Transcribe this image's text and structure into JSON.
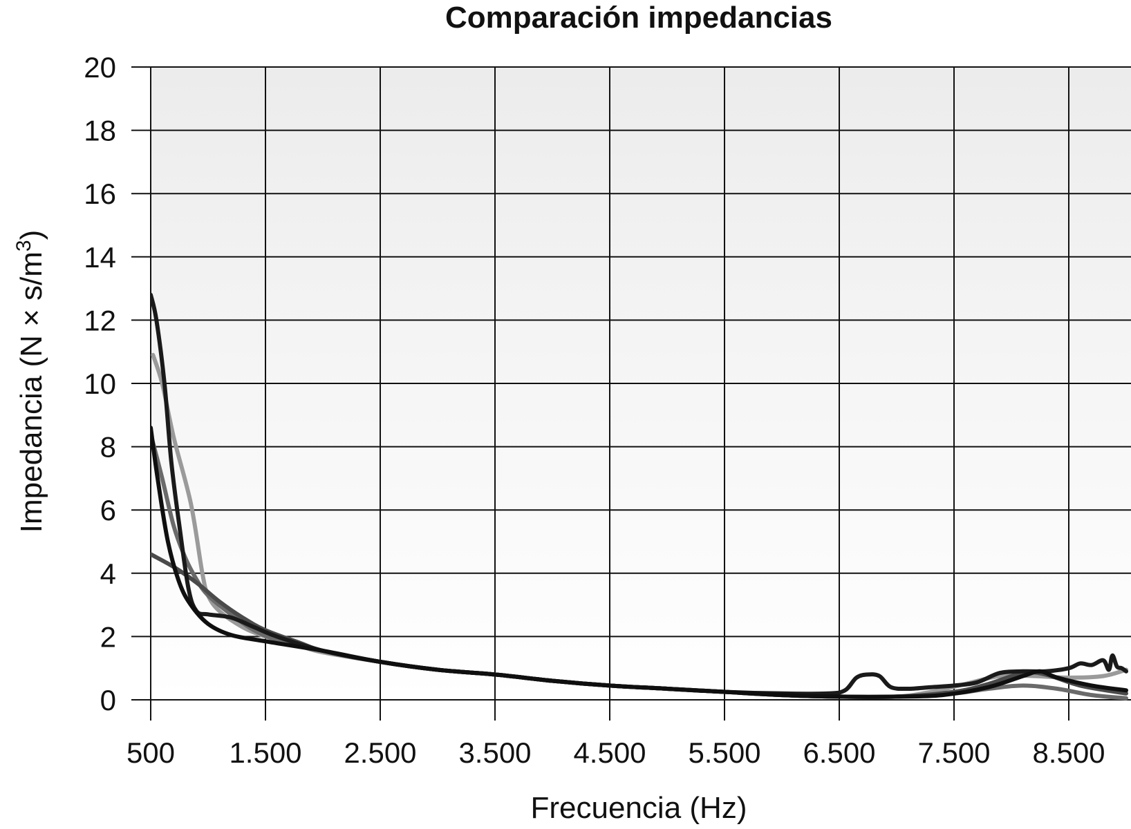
{
  "chart_data": {
    "type": "line",
    "title": "Comparación impedancias",
    "xlabel": "Frecuencia (Hz)",
    "ylabel_main": "Impedancia (N × s/m",
    "ylabel_sup": "3",
    "ylabel_close": ")",
    "xlim": [
      500,
      9000
    ],
    "ylim": [
      0,
      20
    ],
    "x_ticks": [
      {
        "value": 500,
        "label": "500"
      },
      {
        "value": 1500,
        "label": "1.500"
      },
      {
        "value": 2500,
        "label": "2.500"
      },
      {
        "value": 3500,
        "label": "3.500"
      },
      {
        "value": 4500,
        "label": "4.500"
      },
      {
        "value": 5500,
        "label": "5.500"
      },
      {
        "value": 6500,
        "label": "6.500"
      },
      {
        "value": 7500,
        "label": "7.500"
      },
      {
        "value": 8500,
        "label": "8.500"
      }
    ],
    "y_ticks": [
      {
        "value": 0,
        "label": "0"
      },
      {
        "value": 2,
        "label": "2"
      },
      {
        "value": 4,
        "label": "4"
      },
      {
        "value": 6,
        "label": "6"
      },
      {
        "value": 8,
        "label": "8"
      },
      {
        "value": 10,
        "label": "10"
      },
      {
        "value": 12,
        "label": "12"
      },
      {
        "value": 14,
        "label": "14"
      },
      {
        "value": 16,
        "label": "16"
      },
      {
        "value": 18,
        "label": "18"
      },
      {
        "value": 20,
        "label": "20"
      }
    ],
    "grid": true,
    "background_gradient": [
      "#ececec",
      "#ffffff"
    ],
    "series": [
      {
        "color": "#9a9a9a",
        "width": 6,
        "points": [
          [
            520,
            10.9
          ],
          [
            600,
            10
          ],
          [
            700,
            8.3
          ],
          [
            850,
            6.2
          ],
          [
            950,
            4
          ],
          [
            1000,
            3.3
          ],
          [
            1100,
            2.8
          ],
          [
            1300,
            2.3
          ],
          [
            1500,
            2
          ],
          [
            1800,
            1.7
          ],
          [
            2000,
            1.5
          ],
          [
            2500,
            1.2
          ],
          [
            3000,
            0.95
          ],
          [
            3500,
            0.8
          ],
          [
            4000,
            0.6
          ],
          [
            4500,
            0.45
          ],
          [
            5000,
            0.35
          ],
          [
            5500,
            0.25
          ],
          [
            6000,
            0.15
          ],
          [
            6500,
            0.1
          ],
          [
            7000,
            0.1
          ],
          [
            7300,
            0.25
          ],
          [
            7600,
            0.5
          ],
          [
            7900,
            0.75
          ],
          [
            8200,
            0.75
          ],
          [
            8500,
            0.7
          ],
          [
            8800,
            0.75
          ],
          [
            9000,
            0.95
          ]
        ]
      },
      {
        "color": "#6a6a6a",
        "width": 6,
        "points": [
          [
            500,
            8.4
          ],
          [
            600,
            7
          ],
          [
            700,
            5.5
          ],
          [
            800,
            4.5
          ],
          [
            900,
            3.8
          ],
          [
            1000,
            3.3
          ],
          [
            1200,
            2.7
          ],
          [
            1400,
            2.2
          ],
          [
            1600,
            1.9
          ],
          [
            2000,
            1.55
          ],
          [
            2500,
            1.2
          ],
          [
            3000,
            0.95
          ],
          [
            3500,
            0.8
          ],
          [
            4000,
            0.6
          ],
          [
            4500,
            0.45
          ],
          [
            5000,
            0.35
          ],
          [
            5500,
            0.25
          ],
          [
            6000,
            0.15
          ],
          [
            6500,
            0.1
          ],
          [
            7000,
            0.1
          ],
          [
            7500,
            0.2
          ],
          [
            7800,
            0.35
          ],
          [
            8100,
            0.45
          ],
          [
            8400,
            0.35
          ],
          [
            8700,
            0.15
          ],
          [
            9000,
            0.05
          ]
        ]
      },
      {
        "color": "#4a4a4a",
        "width": 6,
        "points": [
          [
            500,
            4.6
          ],
          [
            700,
            4.2
          ],
          [
            900,
            3.7
          ],
          [
            1100,
            3.1
          ],
          [
            1300,
            2.6
          ],
          [
            1500,
            2.2
          ],
          [
            1800,
            1.8
          ],
          [
            2000,
            1.55
          ],
          [
            2500,
            1.2
          ],
          [
            3000,
            0.95
          ],
          [
            3500,
            0.8
          ],
          [
            4000,
            0.6
          ],
          [
            4500,
            0.45
          ],
          [
            5000,
            0.35
          ],
          [
            5500,
            0.25
          ],
          [
            6000,
            0.15
          ],
          [
            6500,
            0.1
          ],
          [
            7000,
            0.1
          ],
          [
            7500,
            0.25
          ],
          [
            7800,
            0.5
          ],
          [
            8100,
            0.85
          ],
          [
            8300,
            0.8
          ],
          [
            8600,
            0.45
          ],
          [
            9000,
            0.2
          ]
        ]
      },
      {
        "color": "#1a1a1a",
        "width": 6,
        "points": [
          [
            500,
            12.8
          ],
          [
            550,
            12
          ],
          [
            620,
            10
          ],
          [
            680,
            7.5
          ],
          [
            750,
            5.5
          ],
          [
            830,
            3.5
          ],
          [
            900,
            2.8
          ],
          [
            1000,
            2.7
          ],
          [
            1200,
            2.6
          ],
          [
            1400,
            2.3
          ],
          [
            1600,
            2
          ],
          [
            2000,
            1.55
          ],
          [
            2500,
            1.2
          ],
          [
            3000,
            0.95
          ],
          [
            3500,
            0.8
          ],
          [
            4000,
            0.6
          ],
          [
            4500,
            0.45
          ],
          [
            5000,
            0.35
          ],
          [
            5500,
            0.25
          ],
          [
            6000,
            0.2
          ],
          [
            6400,
            0.2
          ],
          [
            6550,
            0.3
          ],
          [
            6650,
            0.7
          ],
          [
            6750,
            0.8
          ],
          [
            6850,
            0.75
          ],
          [
            6950,
            0.4
          ],
          [
            7100,
            0.35
          ],
          [
            7300,
            0.4
          ],
          [
            7500,
            0.45
          ],
          [
            7700,
            0.55
          ],
          [
            7900,
            0.85
          ],
          [
            8100,
            0.9
          ],
          [
            8300,
            0.9
          ],
          [
            8500,
            1
          ],
          [
            8600,
            1.15
          ],
          [
            8700,
            1.1
          ],
          [
            8800,
            1.25
          ],
          [
            8850,
            0.95
          ],
          [
            8880,
            1.4
          ],
          [
            8920,
            1.05
          ],
          [
            8960,
            1.0
          ],
          [
            9000,
            0.9
          ]
        ]
      },
      {
        "color": "#0f0f0f",
        "width": 6,
        "points": [
          [
            500,
            8.6
          ],
          [
            560,
            7
          ],
          [
            650,
            5
          ],
          [
            750,
            3.7
          ],
          [
            850,
            3
          ],
          [
            1000,
            2.4
          ],
          [
            1200,
            2.05
          ],
          [
            1500,
            1.85
          ],
          [
            2000,
            1.55
          ],
          [
            2500,
            1.2
          ],
          [
            3000,
            0.95
          ],
          [
            3500,
            0.8
          ],
          [
            4000,
            0.6
          ],
          [
            4500,
            0.45
          ],
          [
            5000,
            0.35
          ],
          [
            5500,
            0.25
          ],
          [
            6000,
            0.15
          ],
          [
            6500,
            0.1
          ],
          [
            7000,
            0.1
          ],
          [
            7400,
            0.15
          ],
          [
            7800,
            0.4
          ],
          [
            8100,
            0.75
          ],
          [
            8250,
            0.9
          ],
          [
            8400,
            0.7
          ],
          [
            8700,
            0.45
          ],
          [
            9000,
            0.3
          ]
        ]
      }
    ]
  }
}
